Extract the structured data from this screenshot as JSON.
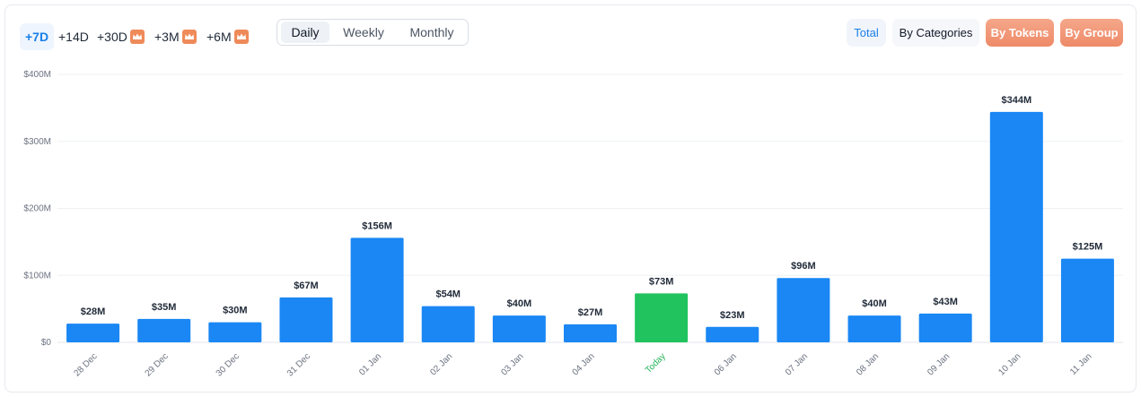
{
  "toolbar": {
    "ranges": [
      {
        "label": "+7D",
        "active": true,
        "premium": false
      },
      {
        "label": "+14D",
        "active": false,
        "premium": false
      },
      {
        "label": "+30D",
        "active": false,
        "premium": true
      },
      {
        "label": "+3M",
        "active": false,
        "premium": true
      },
      {
        "label": "+6M",
        "active": false,
        "premium": true
      }
    ],
    "granularity": [
      {
        "label": "Daily",
        "active": true
      },
      {
        "label": "Weekly",
        "active": false
      },
      {
        "label": "Monthly",
        "active": false
      }
    ],
    "views": [
      {
        "label": "Total",
        "active": true
      },
      {
        "label": "By Categories",
        "active": false
      },
      {
        "label": "By Tokens",
        "active": false,
        "premium": true
      },
      {
        "label": "By Group",
        "active": false,
        "premium": true
      }
    ],
    "premium_icon": "crown-icon"
  },
  "colors": {
    "bar": "#1a87f4",
    "today_bar": "#21c35e",
    "today_label": "#22b357",
    "premium": "#ef8a5a",
    "accent": "#1a7fe8"
  },
  "chart_data": {
    "type": "bar",
    "categories": [
      "28 Dec",
      "29 Dec",
      "30 Dec",
      "31 Dec",
      "01 Jan",
      "02 Jan",
      "03 Jan",
      "04 Jan",
      "Today",
      "06 Jan",
      "07 Jan",
      "08 Jan",
      "09 Jan",
      "10 Jan",
      "11 Jan"
    ],
    "values": [
      28,
      35,
      30,
      67,
      156,
      54,
      40,
      27,
      73,
      23,
      96,
      40,
      43,
      344,
      125
    ],
    "value_labels": [
      "$28M",
      "$35M",
      "$30M",
      "$67M",
      "$156M",
      "$54M",
      "$40M",
      "$27M",
      "$73M",
      "$23M",
      "$96M",
      "$40M",
      "$43M",
      "$344M",
      "$125M"
    ],
    "highlight_category": "Today",
    "y_ticks": [
      {
        "value": 0,
        "label": "$0"
      },
      {
        "value": 100,
        "label": "$100M"
      },
      {
        "value": 200,
        "label": "$200M"
      },
      {
        "value": 300,
        "label": "$300M"
      },
      {
        "value": 400,
        "label": "$400M"
      }
    ],
    "ylim": [
      0,
      400
    ],
    "grid": true,
    "legend": false
  }
}
